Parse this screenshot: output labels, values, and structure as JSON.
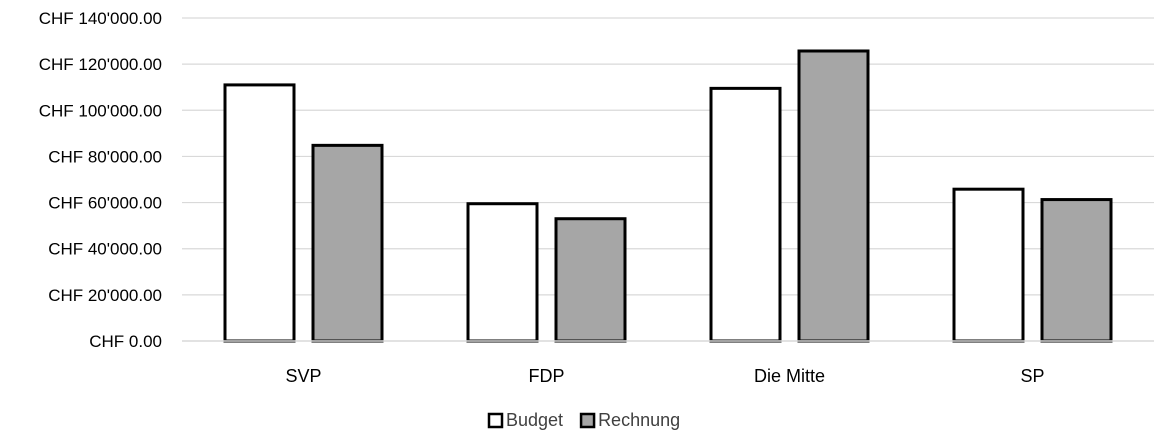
{
  "chart_data": {
    "type": "bar",
    "categories": [
      "SVP",
      "FDP",
      "Die Mitte",
      "SP"
    ],
    "series": [
      {
        "name": "Budget",
        "values": [
          111000,
          59500,
          109500,
          65800
        ],
        "color": "#ffffff"
      },
      {
        "name": "Rechnung",
        "values": [
          84800,
          53000,
          125700,
          61300
        ],
        "color": "#a6a6a6"
      }
    ],
    "y_ticks": [
      "CHF 0.00",
      "CHF 20'000.00",
      "CHF 40'000.00",
      "CHF 60'000.00",
      "CHF 80'000.00",
      "CHF 100'000.00",
      "CHF 120'000.00",
      "CHF 140'000.00"
    ],
    "ylim": [
      0,
      140000
    ],
    "grid": true,
    "legend_position": "bottom",
    "bar_outline_color": "#000000",
    "grid_color": "#d9d9d9"
  }
}
